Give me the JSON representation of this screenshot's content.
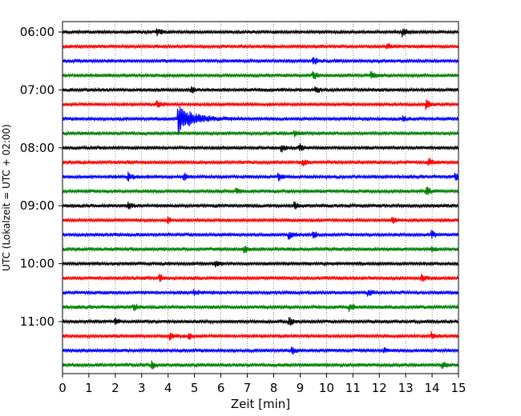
{
  "chart_data": {
    "type": "line",
    "xlabel": "Zeit  [min]",
    "ylabel": "UTC (Lokalzeit = UTC + 02:00)",
    "xlim": [
      0,
      15
    ],
    "x_ticks": [
      "0",
      "1",
      "2",
      "3",
      "4",
      "5",
      "6",
      "7",
      "8",
      "9",
      "10",
      "11",
      "12",
      "13",
      "14",
      "15"
    ],
    "y_ticks": [
      {
        "label": "06:00",
        "row": 0
      },
      {
        "label": "07:00",
        "row": 4
      },
      {
        "label": "08:00",
        "row": 8
      },
      {
        "label": "09:00",
        "row": 12
      },
      {
        "label": "10:00",
        "row": 16
      },
      {
        "label": "11:00",
        "row": 20
      }
    ],
    "grid": "vertical-dotted",
    "trace_colors": [
      "#000000",
      "#ff0000",
      "#0000ff",
      "#008000"
    ],
    "rows": 24,
    "minutes_per_row": 15,
    "events": [
      {
        "row": 0,
        "minute": 3.6,
        "amplitude": 0.5
      },
      {
        "row": 0,
        "minute": 12.9,
        "amplitude": 0.6
      },
      {
        "row": 1,
        "minute": 12.3,
        "amplitude": 0.4
      },
      {
        "row": 2,
        "minute": 9.5,
        "amplitude": 0.6
      },
      {
        "row": 3,
        "minute": 9.5,
        "amplitude": 0.6
      },
      {
        "row": 3,
        "minute": 11.7,
        "amplitude": 0.5
      },
      {
        "row": 4,
        "minute": 4.9,
        "amplitude": 0.5
      },
      {
        "row": 4,
        "minute": 9.6,
        "amplitude": 0.4
      },
      {
        "row": 5,
        "minute": 3.6,
        "amplitude": 0.5
      },
      {
        "row": 5,
        "minute": 13.8,
        "amplitude": 0.6
      },
      {
        "row": 6,
        "minute": 4.4,
        "amplitude": 2.0
      },
      {
        "row": 6,
        "minute": 12.9,
        "amplitude": 0.4
      },
      {
        "row": 7,
        "minute": 8.8,
        "amplitude": 0.5
      },
      {
        "row": 8,
        "minute": 8.3,
        "amplitude": 0.6
      },
      {
        "row": 8,
        "minute": 9.0,
        "amplitude": 0.5
      },
      {
        "row": 9,
        "minute": 9.1,
        "amplitude": 0.5
      },
      {
        "row": 9,
        "minute": 13.9,
        "amplitude": 0.5
      },
      {
        "row": 10,
        "minute": 2.5,
        "amplitude": 0.8
      },
      {
        "row": 10,
        "minute": 4.6,
        "amplitude": 0.6
      },
      {
        "row": 10,
        "minute": 8.2,
        "amplitude": 0.5
      },
      {
        "row": 10,
        "minute": 14.9,
        "amplitude": 0.6
      },
      {
        "row": 11,
        "minute": 6.6,
        "amplitude": 0.5
      },
      {
        "row": 11,
        "minute": 13.8,
        "amplitude": 0.6
      },
      {
        "row": 12,
        "minute": 2.5,
        "amplitude": 0.4
      },
      {
        "row": 12,
        "minute": 8.8,
        "amplitude": 0.5
      },
      {
        "row": 13,
        "minute": 4.0,
        "amplitude": 0.5
      },
      {
        "row": 13,
        "minute": 12.5,
        "amplitude": 0.4
      },
      {
        "row": 14,
        "minute": 8.6,
        "amplitude": 0.5
      },
      {
        "row": 14,
        "minute": 9.5,
        "amplitude": 0.6
      },
      {
        "row": 14,
        "minute": 14.0,
        "amplitude": 0.5
      },
      {
        "row": 15,
        "minute": 6.9,
        "amplitude": 0.6
      },
      {
        "row": 15,
        "minute": 14.0,
        "amplitude": 0.4
      },
      {
        "row": 16,
        "minute": 5.8,
        "amplitude": 0.4
      },
      {
        "row": 17,
        "minute": 3.7,
        "amplitude": 0.5
      },
      {
        "row": 17,
        "minute": 13.6,
        "amplitude": 0.5
      },
      {
        "row": 18,
        "minute": 5.0,
        "amplitude": 0.5
      },
      {
        "row": 18,
        "minute": 11.6,
        "amplitude": 0.5
      },
      {
        "row": 19,
        "minute": 2.7,
        "amplitude": 0.6
      },
      {
        "row": 19,
        "minute": 10.9,
        "amplitude": 0.5
      },
      {
        "row": 20,
        "minute": 2.0,
        "amplitude": 0.5
      },
      {
        "row": 20,
        "minute": 8.6,
        "amplitude": 0.6
      },
      {
        "row": 21,
        "minute": 4.1,
        "amplitude": 0.5
      },
      {
        "row": 21,
        "minute": 4.8,
        "amplitude": 0.4
      },
      {
        "row": 21,
        "minute": 14.0,
        "amplitude": 0.5
      },
      {
        "row": 22,
        "minute": 8.7,
        "amplitude": 0.5
      },
      {
        "row": 22,
        "minute": 12.2,
        "amplitude": 0.4
      },
      {
        "row": 23,
        "minute": 3.4,
        "amplitude": 0.5
      },
      {
        "row": 23,
        "minute": 14.4,
        "amplitude": 0.5
      }
    ]
  }
}
